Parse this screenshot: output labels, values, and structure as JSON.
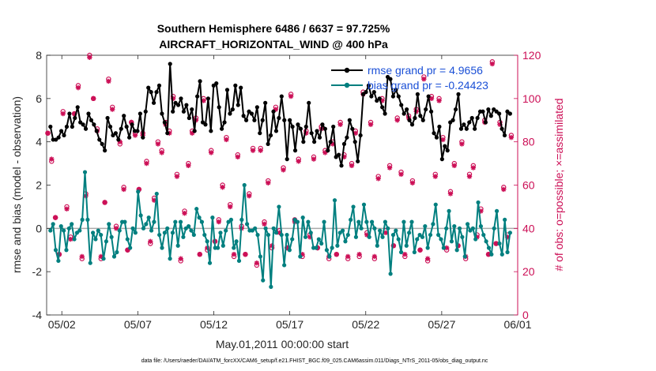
{
  "chart_data": {
    "type": "line",
    "title": "Southern Hemisphere 6486 / 6637 = 97.725%",
    "subtitle": "AIRCRAFT_HORIZONTAL_WIND @ 400 hPa",
    "xlabel": "May.01,2011 00:00:00 start",
    "ylabel_left": "rmse and bias (model - observation)",
    "ylabel_right": "# of obs: o=possible; ×=assimilated",
    "footnote": "data file: /Users/raeder/DAI/ATM_forcXX/CAM6_setup/f.e21.FHIST_BGC.f09_025.CAM6assim.011/Diags_NTrS_2011-05/obs_diag_output.nc",
    "xlim": [
      0,
      31
    ],
    "ylim_left": [
      -4,
      8
    ],
    "ylim_right": [
      0,
      120
    ],
    "xticks": [
      1,
      6,
      11,
      16,
      21,
      26,
      31
    ],
    "xtick_labels": [
      "05/02",
      "05/07",
      "05/12",
      "05/17",
      "05/22",
      "05/27",
      "06/01"
    ],
    "yticks_left": [
      -4,
      -2,
      0,
      2,
      4,
      6,
      8
    ],
    "ytick_labels_left": [
      "-4",
      "-2",
      "0",
      "2",
      "4",
      "6",
      "8"
    ],
    "yticks_right": [
      0,
      20,
      40,
      60,
      80,
      100,
      120
    ],
    "ytick_labels_right": [
      "0",
      "20",
      "40",
      "60",
      "80",
      "100",
      "120"
    ],
    "legend_position": "top-right",
    "colors": {
      "rmse": "#000000",
      "bias": "#007f7f",
      "obs": "#cc0f56",
      "zero_line": "#aaaaaa",
      "right_axis": "#cc0f56"
    },
    "series": [
      {
        "name": "rmse grand pr = 4.9656",
        "values": [
          4.7,
          4.1,
          4.1,
          4.2,
          4.5,
          4.3,
          4.7,
          5.3,
          4.7,
          5.1,
          5.6,
          4.9,
          4.8,
          4.6,
          5.3,
          5.0,
          4.8,
          4.5,
          4.1,
          3.9,
          3.6,
          5.1,
          4.7,
          4.3,
          4.4,
          4.1,
          4.6,
          5.2,
          4.7,
          4.2,
          4.8,
          4.5,
          4.5,
          5.3,
          4.2,
          5.4,
          6.5,
          6.3,
          5.8,
          6.3,
          6.6,
          5.3,
          4.9,
          4.4,
          7.6,
          5.4,
          5.8,
          5.7,
          6.0,
          5.4,
          5.7,
          5.1,
          5.5,
          4.5,
          6.1,
          6.8,
          4.9,
          4.8,
          6.0,
          4.5,
          6.6,
          6.7,
          5.6,
          4.6,
          4.9,
          6.4,
          5.3,
          5.5,
          6.6,
          5.7,
          6.5,
          5.2,
          5.0,
          5.4,
          5.3,
          5.0,
          5.6,
          4.4,
          5.0,
          5.8,
          3.9,
          4.3,
          5.4,
          4.5,
          5.1,
          6.1,
          5.0,
          3.2,
          5.0,
          4.7,
          3.6,
          4.8,
          4.6,
          4.0,
          4.7,
          5.8,
          4.4,
          4.0,
          4.5,
          4.2,
          4.8,
          4.6,
          3.6,
          4.0,
          4.7,
          3.3,
          3.4,
          2.9,
          3.9,
          4.2,
          5.0,
          4.6,
          4.0,
          3.1,
          4.3,
          6.2,
          6.3,
          6.6,
          6.1,
          6.3,
          5.9,
          6.0,
          5.6,
          5.3,
          7.0,
          6.9,
          6.1,
          6.4,
          6.1,
          5.7,
          5.3,
          5.5,
          5.0,
          4.8,
          5.1,
          6.2,
          5.2,
          5.0,
          5.5,
          6.1,
          5.4,
          4.4,
          4.2,
          4.7,
          3.2,
          3.8,
          3.6,
          4.9,
          5.0,
          5.5,
          6.2,
          4.6,
          4.8,
          4.6,
          4.9,
          5.1,
          4.6,
          5.1,
          5.4,
          5.4,
          4.9,
          5.5,
          5.2,
          5.5,
          5.4,
          5.3,
          4.6,
          4.3,
          5.4,
          5.3
        ]
      },
      {
        "name": "bias grand pr = -0.24423",
        "values": [
          -0.1,
          0.2,
          -1.0,
          -1.5,
          0.1,
          -0.1,
          -1.0,
          0.0,
          0.2,
          -0.5,
          -0.2,
          -0.1,
          0.4,
          2.6,
          0.4,
          -1.6,
          -0.2,
          -0.5,
          -0.1,
          -0.3,
          -1.4,
          -0.6,
          0.2,
          -0.4,
          -1.3,
          -1.1,
          -0.1,
          0.3,
          0.3,
          -0.5,
          -0.9,
          0.0,
          -0.2,
          1.7,
          0.6,
          0.0,
          0.2,
          0.5,
          -0.1,
          0.3,
          1.6,
          -0.3,
          -0.9,
          -0.2,
          0.0,
          -1.4,
          -0.2,
          0.3,
          -0.8,
          0.3,
          -0.4,
          0.0,
          0.1,
          -0.1,
          -0.3,
          0.9,
          0.5,
          0.3,
          -0.3,
          -0.6,
          -1.6,
          0.5,
          -0.9,
          -0.9,
          -0.2,
          -0.8,
          -0.1,
          0.3,
          0.4,
          -0.9,
          -0.6,
          -1.5,
          0.4,
          2.0,
          0.2,
          -0.1,
          -0.1,
          0.0,
          -0.3,
          -1.3,
          -2.4,
          0.0,
          -0.3,
          -2.7,
          0.0,
          -0.2,
          1.0,
          -0.3,
          -1.7,
          -0.3,
          -1.0,
          -0.5,
          0.4,
          0.3,
          -1.3,
          0.5,
          -0.4,
          0.3,
          -0.2,
          -0.9,
          -0.9,
          -0.5,
          -0.7,
          0.3,
          -1.0,
          -1.3,
          -0.9,
          1.3,
          -0.8,
          -0.2,
          -0.1,
          -0.6,
          -0.3,
          0.4,
          1.0,
          -0.4,
          0.3,
          0.0,
          1.1,
          0.3,
          -0.4,
          0.3,
          0.0,
          -0.8,
          -0.1,
          -0.4,
          0.3,
          0.0,
          -2.1,
          -0.3,
          -0.1,
          -0.5,
          -1.1,
          0.3,
          -0.8,
          -0.2,
          0.3,
          -1.1,
          -0.5,
          -0.3,
          -0.4,
          0.1,
          -0.9,
          -0.3,
          0.2,
          1.1,
          -0.3,
          -0.5,
          -0.9,
          0.0,
          0.8,
          -0.6,
          0.1,
          -1.0,
          0.0,
          -0.4,
          -1.3,
          0.2,
          -0.1,
          0.0,
          -0.5,
          1.2,
          0.1,
          -0.3,
          -0.6,
          -0.9,
          -1.2,
          0.0,
          0.8,
          -0.7,
          -1.2,
          0.4,
          -1.1,
          -0.2
        ]
      }
    ],
    "obs_possible": [
      [
        0.0,
        84
      ],
      [
        0.25,
        71
      ],
      [
        0.5,
        45
      ],
      [
        0.75,
        28
      ],
      [
        1.0,
        94
      ],
      [
        1.25,
        50
      ],
      [
        1.5,
        36
      ],
      [
        1.75,
        93
      ],
      [
        2.0,
        106
      ],
      [
        2.25,
        26
      ],
      [
        2.5,
        56
      ],
      [
        2.75,
        120
      ],
      [
        3.0,
        100
      ],
      [
        3.25,
        86
      ],
      [
        3.5,
        26
      ],
      [
        3.75,
        52
      ],
      [
        4.0,
        109
      ],
      [
        4.25,
        96
      ],
      [
        4.5,
        41
      ],
      [
        4.75,
        79
      ],
      [
        5.0,
        59
      ],
      [
        5.25,
        30
      ],
      [
        5.5,
        89
      ],
      [
        5.75,
        84
      ],
      [
        6.0,
        58
      ],
      [
        6.25,
        84
      ],
      [
        6.5,
        71
      ],
      [
        6.75,
        33
      ],
      [
        7.0,
        54
      ],
      [
        7.25,
        80
      ],
      [
        7.5,
        76
      ],
      [
        7.75,
        89
      ],
      [
        8.0,
        85
      ],
      [
        8.25,
        101
      ],
      [
        8.5,
        65
      ],
      [
        8.75,
        25
      ],
      [
        9.0,
        48
      ],
      [
        9.25,
        70
      ],
      [
        9.5,
        85
      ],
      [
        9.75,
        91
      ],
      [
        10.0,
        28
      ],
      [
        10.25,
        100
      ],
      [
        10.5,
        30
      ],
      [
        10.75,
        76
      ],
      [
        11.0,
        34
      ],
      [
        11.25,
        44
      ],
      [
        11.5,
        60
      ],
      [
        11.75,
        82
      ],
      [
        12.0,
        51
      ],
      [
        12.25,
        27
      ],
      [
        12.5,
        74
      ],
      [
        12.75,
        41
      ],
      [
        13.0,
        28
      ],
      [
        13.25,
        56
      ],
      [
        13.5,
        77
      ],
      [
        13.75,
        23
      ],
      [
        14.0,
        77
      ],
      [
        14.25,
        43
      ],
      [
        14.5,
        62
      ],
      [
        14.75,
        31
      ],
      [
        15.0,
        96
      ],
      [
        15.25,
        39
      ],
      [
        15.5,
        68
      ],
      [
        15.75,
        31
      ],
      [
        16.0,
        102
      ],
      [
        16.25,
        44
      ],
      [
        16.5,
        72
      ],
      [
        16.75,
        27
      ],
      [
        17.0,
        85
      ],
      [
        17.25,
        37
      ],
      [
        17.5,
        73
      ],
      [
        17.75,
        31
      ],
      [
        18.0,
        87
      ],
      [
        18.25,
        76
      ],
      [
        18.5,
        26
      ],
      [
        18.75,
        80
      ],
      [
        19.0,
        28
      ],
      [
        19.25,
        89
      ],
      [
        19.5,
        74
      ],
      [
        19.75,
        26
      ],
      [
        20.0,
        70
      ],
      [
        20.25,
        85
      ],
      [
        20.5,
        27
      ],
      [
        20.75,
        103
      ],
      [
        21.0,
        38
      ],
      [
        21.25,
        89
      ],
      [
        21.5,
        26
      ],
      [
        21.75,
        64
      ],
      [
        22.0,
        100
      ],
      [
        22.25,
        39
      ],
      [
        22.5,
        69
      ],
      [
        22.75,
        32
      ],
      [
        23.0,
        91
      ],
      [
        23.25,
        66
      ],
      [
        23.5,
        27
      ],
      [
        23.75,
        92
      ],
      [
        24.0,
        62
      ],
      [
        24.25,
        95
      ],
      [
        24.5,
        30
      ],
      [
        24.75,
        110
      ],
      [
        25.0,
        25
      ],
      [
        25.25,
        101
      ],
      [
        25.5,
        65
      ],
      [
        25.75,
        100
      ],
      [
        26.0,
        82
      ],
      [
        26.25,
        30
      ],
      [
        26.5,
        57
      ],
      [
        26.75,
        70
      ],
      [
        27.0,
        32
      ],
      [
        27.25,
        80
      ],
      [
        27.5,
        26
      ],
      [
        27.75,
        65
      ],
      [
        28.0,
        69
      ],
      [
        28.25,
        37
      ],
      [
        28.5,
        49
      ],
      [
        28.75,
        90
      ],
      [
        29.0,
        28
      ],
      [
        29.25,
        117
      ],
      [
        29.5,
        33
      ],
      [
        29.75,
        89
      ],
      [
        30.0,
        59
      ],
      [
        30.25,
        37
      ],
      [
        30.5,
        83
      ]
    ],
    "obs_assimilated": [
      [
        0.0,
        84
      ],
      [
        0.25,
        72
      ],
      [
        0.5,
        45
      ],
      [
        0.75,
        28
      ],
      [
        1.0,
        93
      ],
      [
        1.25,
        49
      ],
      [
        1.5,
        35
      ],
      [
        1.75,
        93
      ],
      [
        2.0,
        105
      ],
      [
        2.25,
        27
      ],
      [
        2.5,
        55
      ],
      [
        2.75,
        119
      ],
      [
        3.0,
        100
      ],
      [
        3.25,
        85
      ],
      [
        3.5,
        27
      ],
      [
        3.75,
        52
      ],
      [
        4.0,
        108
      ],
      [
        4.25,
        95
      ],
      [
        4.5,
        40
      ],
      [
        4.75,
        80
      ],
      [
        5.0,
        58
      ],
      [
        5.25,
        30
      ],
      [
        5.5,
        89
      ],
      [
        5.75,
        83
      ],
      [
        6.0,
        58
      ],
      [
        6.25,
        83
      ],
      [
        6.5,
        70
      ],
      [
        6.75,
        34
      ],
      [
        7.0,
        53
      ],
      [
        7.25,
        79
      ],
      [
        7.5,
        75
      ],
      [
        7.75,
        88
      ],
      [
        8.0,
        84
      ],
      [
        8.25,
        100
      ],
      [
        8.5,
        64
      ],
      [
        8.75,
        26
      ],
      [
        9.0,
        47
      ],
      [
        9.25,
        69
      ],
      [
        9.5,
        84
      ],
      [
        9.75,
        90
      ],
      [
        10.0,
        28
      ],
      [
        10.25,
        99
      ],
      [
        10.5,
        31
      ],
      [
        10.75,
        75
      ],
      [
        11.0,
        34
      ],
      [
        11.25,
        43
      ],
      [
        11.5,
        59
      ],
      [
        11.75,
        81
      ],
      [
        12.0,
        50
      ],
      [
        12.25,
        28
      ],
      [
        12.5,
        73
      ],
      [
        12.75,
        40
      ],
      [
        13.0,
        28
      ],
      [
        13.25,
        55
      ],
      [
        13.5,
        76
      ],
      [
        13.75,
        24
      ],
      [
        14.0,
        76
      ],
      [
        14.25,
        42
      ],
      [
        14.5,
        61
      ],
      [
        14.75,
        32
      ],
      [
        15.0,
        95
      ],
      [
        15.25,
        38
      ],
      [
        15.5,
        67
      ],
      [
        15.75,
        31
      ],
      [
        16.0,
        101
      ],
      [
        16.25,
        43
      ],
      [
        16.5,
        71
      ],
      [
        16.75,
        28
      ],
      [
        17.0,
        84
      ],
      [
        17.25,
        36
      ],
      [
        17.5,
        72
      ],
      [
        17.75,
        31
      ],
      [
        18.0,
        86
      ],
      [
        18.25,
        75
      ],
      [
        18.5,
        27
      ],
      [
        18.75,
        79
      ],
      [
        19.0,
        28
      ],
      [
        19.25,
        88
      ],
      [
        19.5,
        73
      ],
      [
        19.75,
        27
      ],
      [
        20.0,
        69
      ],
      [
        20.25,
        84
      ],
      [
        20.5,
        28
      ],
      [
        20.75,
        102
      ],
      [
        21.0,
        37
      ],
      [
        21.25,
        88
      ],
      [
        21.5,
        27
      ],
      [
        21.75,
        63
      ],
      [
        22.0,
        99
      ],
      [
        22.25,
        38
      ],
      [
        22.5,
        68
      ],
      [
        22.75,
        32
      ],
      [
        23.0,
        90
      ],
      [
        23.25,
        65
      ],
      [
        23.5,
        28
      ],
      [
        23.75,
        91
      ],
      [
        24.0,
        61
      ],
      [
        24.25,
        94
      ],
      [
        24.5,
        30
      ],
      [
        24.75,
        109
      ],
      [
        25.0,
        26
      ],
      [
        25.25,
        100
      ],
      [
        25.5,
        64
      ],
      [
        25.75,
        99
      ],
      [
        26.0,
        81
      ],
      [
        26.25,
        31
      ],
      [
        26.5,
        56
      ],
      [
        26.75,
        69
      ],
      [
        27.0,
        32
      ],
      [
        27.25,
        79
      ],
      [
        27.5,
        27
      ],
      [
        27.75,
        64
      ],
      [
        28.0,
        68
      ],
      [
        28.25,
        36
      ],
      [
        28.5,
        48
      ],
      [
        28.75,
        89
      ],
      [
        29.0,
        28
      ],
      [
        29.25,
        116
      ],
      [
        29.5,
        33
      ],
      [
        29.75,
        88
      ],
      [
        30.0,
        58
      ],
      [
        30.25,
        36
      ],
      [
        30.5,
        82
      ]
    ]
  }
}
